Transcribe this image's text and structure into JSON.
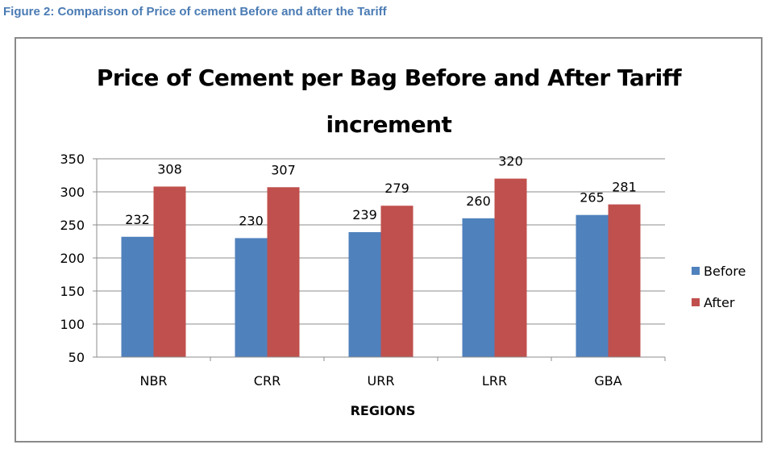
{
  "figure_caption": "Figure 2: Comparison of Price of cement Before and after the Tariff",
  "chart_data": {
    "type": "bar",
    "title_line1": "Price of Cement per Bag Before and After Tariff",
    "title_line2": "increment",
    "xlabel": "REGIONS",
    "ylabel": "",
    "categories": [
      "NBR",
      "CRR",
      "URR",
      "LRR",
      "GBA"
    ],
    "series": [
      {
        "name": "Before",
        "values": [
          232,
          230,
          239,
          260,
          265
        ],
        "color": "#4f81bd"
      },
      {
        "name": "After",
        "values": [
          308,
          307,
          279,
          320,
          281
        ],
        "color": "#c0504d"
      }
    ],
    "ylim": [
      50,
      350
    ],
    "yticks": [
      50,
      100,
      150,
      200,
      250,
      300,
      350
    ],
    "grid": true,
    "legend_position": "right"
  }
}
